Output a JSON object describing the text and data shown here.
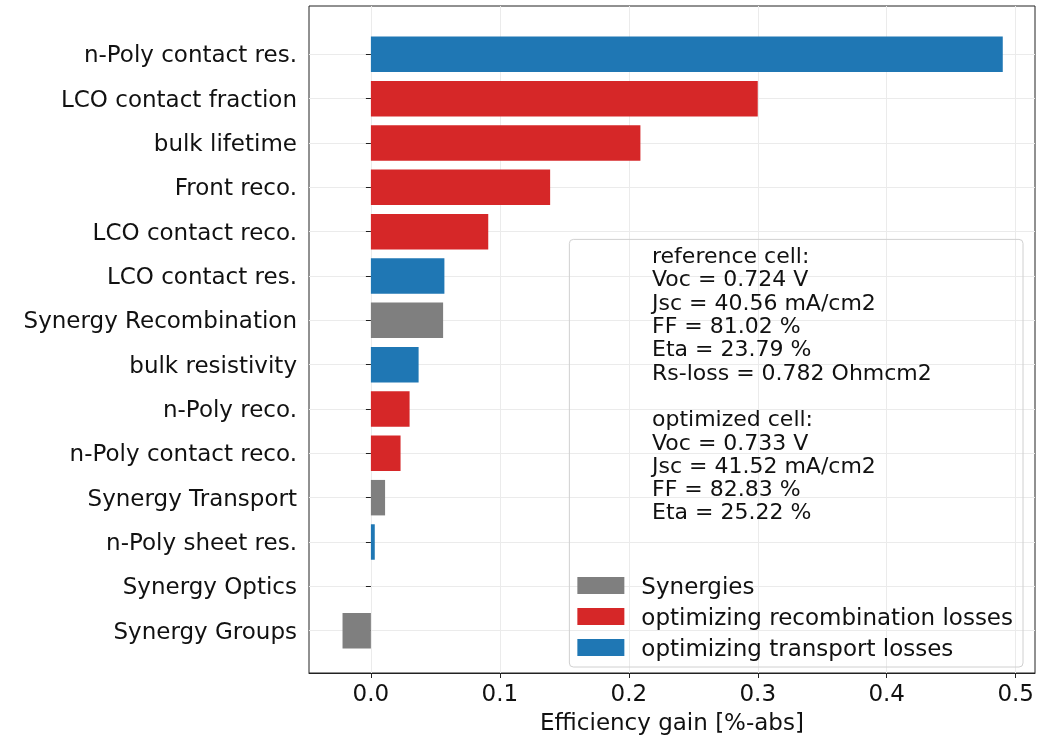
{
  "chart_data": {
    "type": "bar",
    "orientation": "horizontal",
    "xlabel": "Efficiency gain [%-abs]",
    "categories": [
      "n-Poly contact res.",
      "LCO contact fraction",
      "bulk lifetime",
      "Front reco.",
      "LCO contact reco.",
      "LCO contact res.",
      "Synergy Recombination",
      "bulk resistivity",
      "n-Poly reco.",
      "n-Poly contact reco.",
      "Synergy Transport",
      "n-Poly sheet res.",
      "Synergy Optics",
      "Synergy Groups"
    ],
    "series": [
      {
        "name": "Synergies",
        "color": "#7f7f7f",
        "values": [
          null,
          null,
          null,
          null,
          null,
          null,
          0.056,
          null,
          null,
          null,
          0.011,
          null,
          0,
          -0.022
        ]
      },
      {
        "name": "optimizing recombination losses",
        "color": "#d62728",
        "values": [
          null,
          0.3,
          0.209,
          0.139,
          0.091,
          null,
          null,
          null,
          0.03,
          0.023,
          null,
          null,
          null,
          null
        ]
      },
      {
        "name": "optimizing transport losses",
        "color": "#1f77b4",
        "values": [
          0.49,
          null,
          null,
          null,
          null,
          0.057,
          null,
          0.037,
          null,
          null,
          null,
          0.003,
          null,
          null
        ]
      }
    ],
    "xlim": [
      -0.048,
      0.515
    ],
    "xticks": [
      {
        "value": 0,
        "label": "0.0"
      },
      0.1,
      0.2,
      0.3,
      0.4,
      0.5
    ],
    "grid": true,
    "legend": "bottom right",
    "annotations": [
      "reference cell:\nVoc = 0.724 V\nJsc = 40.56 mA/cm2\nFF = 81.02 %\nEta = 23.79 %\nRs-loss = 0.782 Ohmcm2",
      "optimized cell:\nVoc = 0.733 V\nJsc = 41.52 mA/cm2\nFF = 82.83 %\nEta = 25.22 %"
    ]
  }
}
